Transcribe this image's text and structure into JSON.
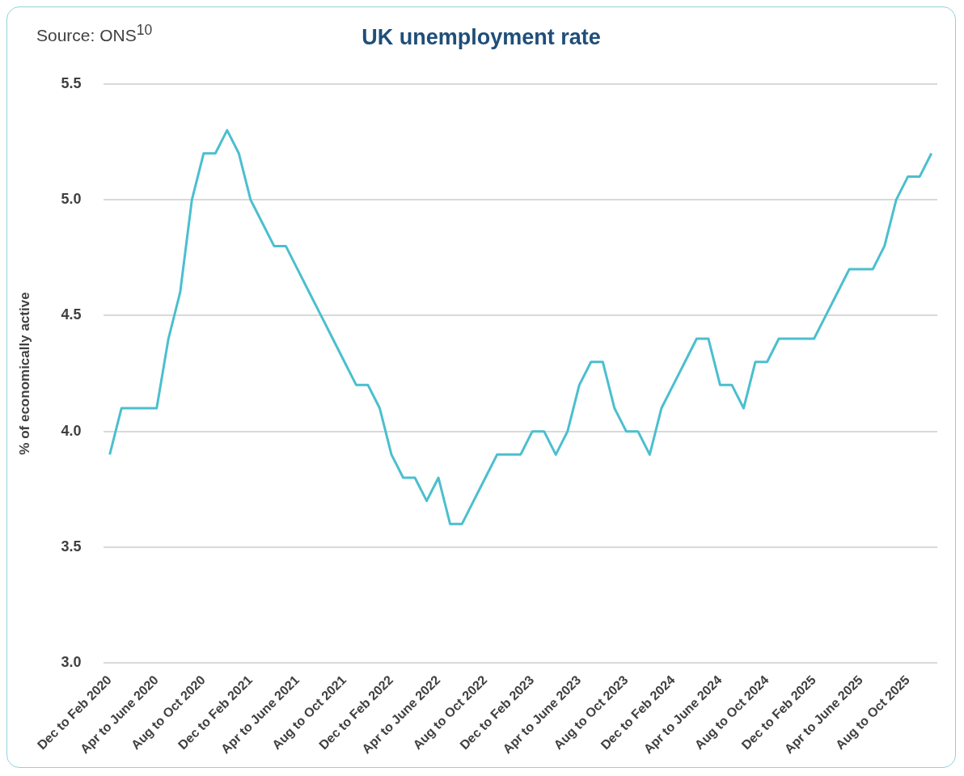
{
  "chart_data": {
    "type": "line",
    "title": "UK unemployment rate",
    "ylabel": "% of economically active",
    "annotations": [
      "Source: ONS$^{10}$"
    ],
    "categories": [
      "Dec to Feb 2020",
      null,
      null,
      null,
      "Apr to June 2020",
      null,
      null,
      null,
      "Aug to Oct 2020",
      null,
      null,
      null,
      "Dec to Feb 2021",
      null,
      null,
      null,
      "Apr to June 2021",
      null,
      null,
      null,
      "Aug to Oct 2021",
      null,
      null,
      null,
      "Dec to Feb 2022",
      null,
      null,
      null,
      "Apr to June 2022",
      null,
      null,
      null,
      "Aug to Oct 2022",
      null,
      null,
      null,
      "Dec to Feb 2023",
      null,
      null,
      null,
      "Apr to June 2023",
      null,
      null,
      null,
      "Aug to Oct 2023",
      null,
      null,
      null,
      "Dec to Feb 2024",
      null,
      null,
      null,
      "Apr to June 2024",
      null,
      null,
      null,
      "Aug to Oct 2024",
      null,
      null,
      null,
      "Dec to Feb 2025",
      null,
      null,
      null,
      "Apr to June 2025",
      null,
      null,
      null,
      "Aug to Oct 2025",
      null,
      null
    ],
    "series": [
      {
        "color": "#4bbfce",
        "values": [
          3.9,
          4.1,
          4.1,
          4.1,
          4.1,
          4.4,
          4.6,
          5.0,
          5.2,
          5.2,
          5.3,
          5.2,
          5.0,
          4.9,
          4.8,
          4.8,
          4.7,
          4.6,
          4.5,
          4.4,
          4.3,
          4.2,
          4.2,
          4.1,
          3.9,
          3.8,
          3.8,
          3.7,
          3.8,
          3.6,
          3.6,
          3.7,
          3.8,
          3.9,
          3.9,
          3.9,
          4.0,
          4.0,
          3.9,
          4.0,
          4.2,
          4.3,
          4.3,
          4.1,
          4.0,
          4.0,
          3.9,
          4.1,
          4.2,
          4.3,
          4.4,
          4.4,
          4.2,
          4.2,
          4.1,
          4.3,
          4.3,
          4.4,
          4.4,
          4.4,
          4.4,
          4.5,
          4.6,
          4.7,
          4.7,
          4.7,
          4.8,
          5.0,
          5.1,
          5.1,
          5.2
        ]
      }
    ],
    "ylim": [
      3,
      5.5
    ],
    "yticks": [
      {
        "value": 3,
        "label": "3.0"
      },
      3.5,
      {
        "value": 4,
        "label": "4.0"
      },
      4.5,
      {
        "value": 5,
        "label": "5.0"
      },
      5.5
    ],
    "grid": "y",
    "marker": "none",
    "line_style": "solid"
  }
}
